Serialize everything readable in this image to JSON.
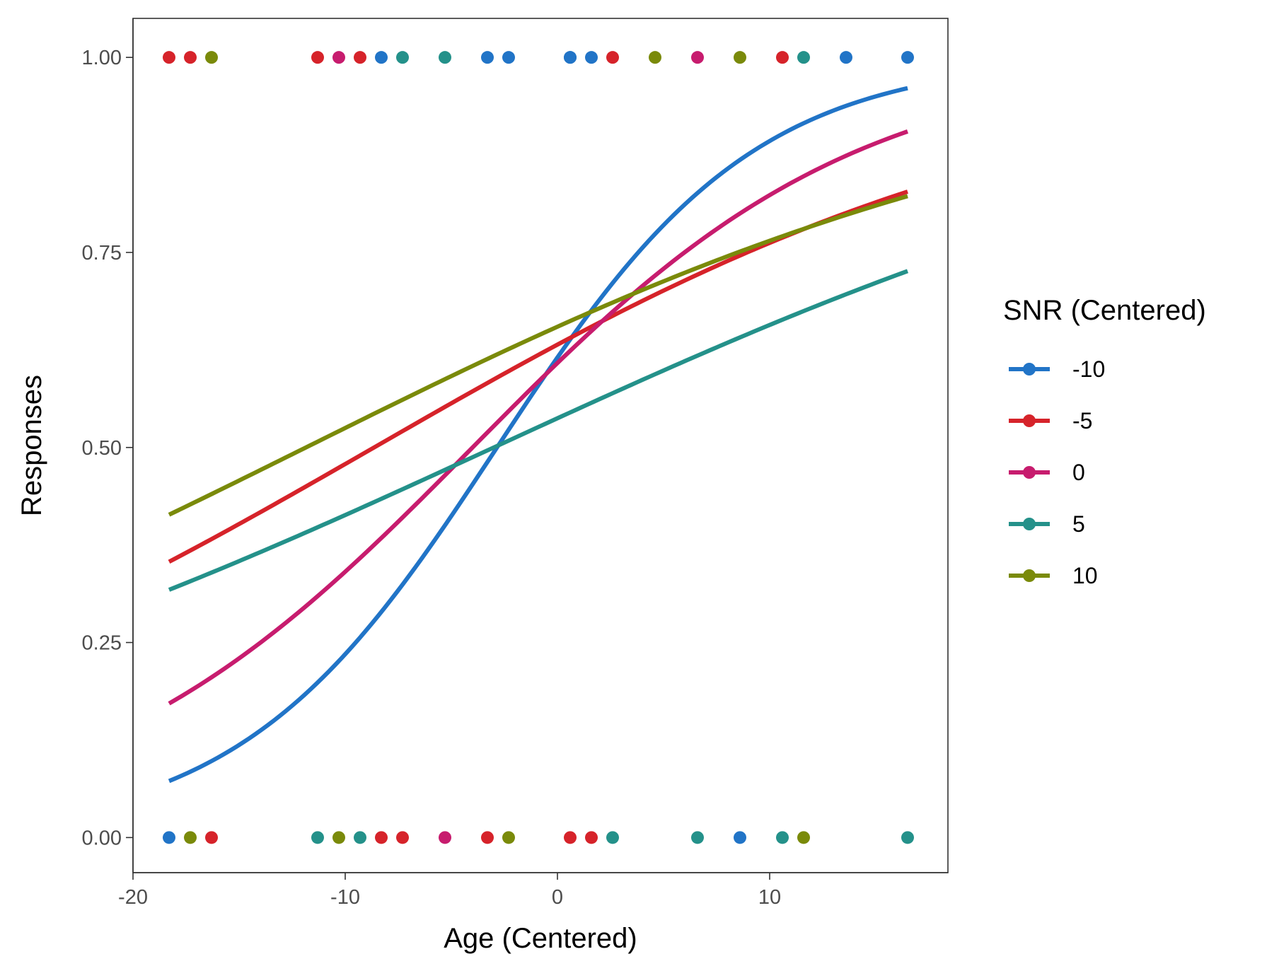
{
  "chart_data": {
    "type": "scatter",
    "xlabel": "Age (Centered)",
    "ylabel": "Responses",
    "xlim": [
      -20,
      18.4
    ],
    "ylim": [
      -0.045,
      1.05
    ],
    "x_ticks": [
      -20,
      -10,
      0,
      10
    ],
    "x_tick_labels": [
      "-20",
      "-10",
      "0",
      "10"
    ],
    "y_ticks": [
      0,
      0.25,
      0.5,
      0.75,
      1.0
    ],
    "y_tick_labels": [
      "0.00",
      "0.25",
      "0.50",
      "0.75",
      "1.00"
    ],
    "grid": false,
    "legend": {
      "title": "SNR (Centered)",
      "placement": "right"
    },
    "curve_x_range": [
      -18.3,
      16.5
    ],
    "series": [
      {
        "name": "-10",
        "color": "#2174c7",
        "curve": {
          "intercept": 0.47,
          "slope": 0.165
        },
        "points": [
          [
            -8.3,
            1
          ],
          [
            -3.3,
            1
          ],
          [
            -2.3,
            1
          ],
          [
            0.6,
            1
          ],
          [
            0.6,
            1
          ],
          [
            1.6,
            1
          ],
          [
            13.6,
            1
          ],
          [
            16.5,
            1
          ],
          [
            -18.3,
            0
          ],
          [
            8.6,
            0
          ]
        ]
      },
      {
        "name": "-5",
        "color": "#d6232a",
        "curve": {
          "intercept": 0.54,
          "slope": 0.0625
        },
        "points": [
          [
            -18.3,
            1
          ],
          [
            -17.3,
            1
          ],
          [
            -11.3,
            1
          ],
          [
            -9.3,
            1
          ],
          [
            2.6,
            1
          ],
          [
            10.6,
            1
          ],
          [
            -16.3,
            0
          ],
          [
            -8.3,
            0
          ],
          [
            -7.3,
            0
          ],
          [
            -3.3,
            0
          ],
          [
            0.6,
            0
          ],
          [
            1.6,
            0
          ]
        ]
      },
      {
        "name": "0",
        "color": "#c71c6e",
        "curve": {
          "intercept": 0.44,
          "slope": 0.11
        },
        "points": [
          [
            -10.3,
            1
          ],
          [
            6.6,
            1
          ],
          [
            -5.3,
            0
          ]
        ]
      },
      {
        "name": "5",
        "color": "#24918a",
        "curve": {
          "intercept": 0.15,
          "slope": 0.05
        },
        "points": [
          [
            -7.3,
            1
          ],
          [
            -5.3,
            1
          ],
          [
            11.6,
            1
          ],
          [
            -11.3,
            0
          ],
          [
            -9.3,
            0
          ],
          [
            2.6,
            0
          ],
          [
            6.6,
            0
          ],
          [
            10.6,
            0
          ],
          [
            16.5,
            0
          ]
        ]
      },
      {
        "name": "10",
        "color": "#7a8a0a",
        "curve": {
          "intercept": 0.64,
          "slope": 0.054
        },
        "points": [
          [
            -16.3,
            1
          ],
          [
            4.6,
            1
          ],
          [
            8.6,
            1
          ],
          [
            -17.3,
            0
          ],
          [
            -10.3,
            0
          ],
          [
            -2.3,
            0
          ],
          [
            11.6,
            0
          ]
        ]
      }
    ]
  }
}
